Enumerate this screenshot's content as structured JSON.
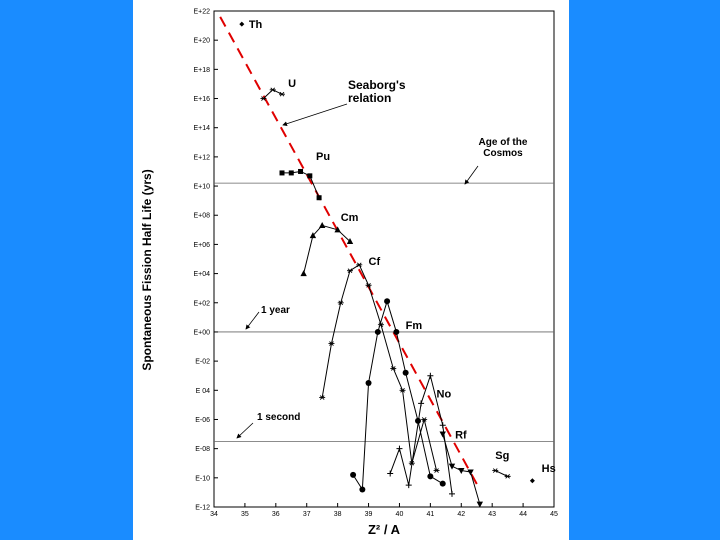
{
  "chart_data": {
    "type": "line",
    "title": "",
    "xlabel": "Z² / A",
    "ylabel": "Spontaneous Fission Half Life (yrs)",
    "xlim": [
      34,
      45
    ],
    "ylim": [
      -12,
      22
    ],
    "x_ticks": [
      34,
      35,
      36,
      37,
      38,
      39,
      40,
      41,
      42,
      43,
      44,
      45
    ],
    "x_tick_labels": [
      "34",
      "35",
      "36",
      "37",
      "38",
      "39",
      "40",
      "41",
      "42",
      "43",
      "44",
      "45"
    ],
    "y_ticks": [
      22,
      20,
      18,
      16,
      14,
      12,
      10,
      8,
      6,
      4,
      2,
      0,
      -2,
      -4,
      -6,
      -8,
      -10,
      -12
    ],
    "y_tick_labels": [
      "E+22",
      "E+20",
      "E+18",
      "E+16",
      "E+14",
      "E+12",
      "E+10",
      "E+08",
      "E+06",
      "E+04",
      "E+02",
      "E+00",
      "E-02",
      "E 04",
      "E-06",
      "E-08",
      "E-10",
      "E-12"
    ],
    "grid": false,
    "reference_lines": [
      {
        "label": "Age of the Cosmos",
        "y": 10.2
      },
      {
        "label": "1 year",
        "y": 0
      },
      {
        "label": "1 second",
        "y": -7.5
      }
    ],
    "trend_line": {
      "label": "Seaborg's relation",
      "x": [
        34.2,
        42.6
      ],
      "y": [
        21.6,
        -10.8
      ],
      "color": "#e00000"
    },
    "series": [
      {
        "name": "Th",
        "marker": "diamond",
        "x": [
          34.9
        ],
        "y": [
          21.1
        ]
      },
      {
        "name": "U",
        "marker": "star",
        "x": [
          35.6,
          35.9,
          36.2
        ],
        "y": [
          16.0,
          16.6,
          16.3
        ]
      },
      {
        "name": "Pu",
        "marker": "square",
        "x": [
          36.2,
          36.5,
          36.8,
          37.1,
          37.4
        ],
        "y": [
          10.9,
          10.9,
          11.0,
          10.7,
          9.2
        ]
      },
      {
        "name": "Cm",
        "marker": "triangle",
        "x": [
          36.9,
          37.2,
          37.5,
          38.0,
          38.4
        ],
        "y": [
          4.0,
          6.6,
          7.3,
          7.0,
          6.2
        ]
      },
      {
        "name": "Cf",
        "marker": "star",
        "x": [
          37.5,
          37.8,
          38.1,
          38.4,
          38.7,
          39.0,
          39.4,
          39.8,
          40.1,
          40.4,
          40.8,
          41.2
        ],
        "y": [
          -4.5,
          -0.8,
          2.0,
          4.2,
          4.6,
          3.2,
          0.5,
          -2.5,
          -4.0,
          -9.0,
          -6.0,
          -9.5
        ]
      },
      {
        "name": "Fm",
        "marker": "circle",
        "x": [
          38.5,
          38.8,
          39.0,
          39.3,
          39.6,
          39.9,
          40.2,
          40.6,
          41.0,
          41.4
        ],
        "y": [
          -9.8,
          -10.8,
          -3.5,
          0.0,
          2.1,
          0.0,
          -2.8,
          -6.1,
          -9.9,
          -10.4
        ]
      },
      {
        "name": "No",
        "marker": "plus",
        "x": [
          39.7,
          40.0,
          40.3,
          40.7,
          41.0,
          41.4,
          41.7
        ],
        "y": [
          -9.7,
          -8.0,
          -10.5,
          -4.9,
          -3.0,
          -6.4,
          -11.1
        ]
      },
      {
        "name": "Rf",
        "marker": "triangle-down",
        "x": [
          41.4,
          41.7,
          42.0,
          42.3,
          42.6
        ],
        "y": [
          -7.0,
          -9.2,
          -9.5,
          -9.6,
          -11.8
        ]
      },
      {
        "name": "Sg",
        "marker": "star",
        "x": [
          43.1,
          43.5
        ],
        "y": [
          -9.5,
          -9.9
        ]
      },
      {
        "name": "Hs",
        "marker": "diamond",
        "x": [
          44.3
        ],
        "y": [
          -10.2
        ]
      }
    ]
  }
}
